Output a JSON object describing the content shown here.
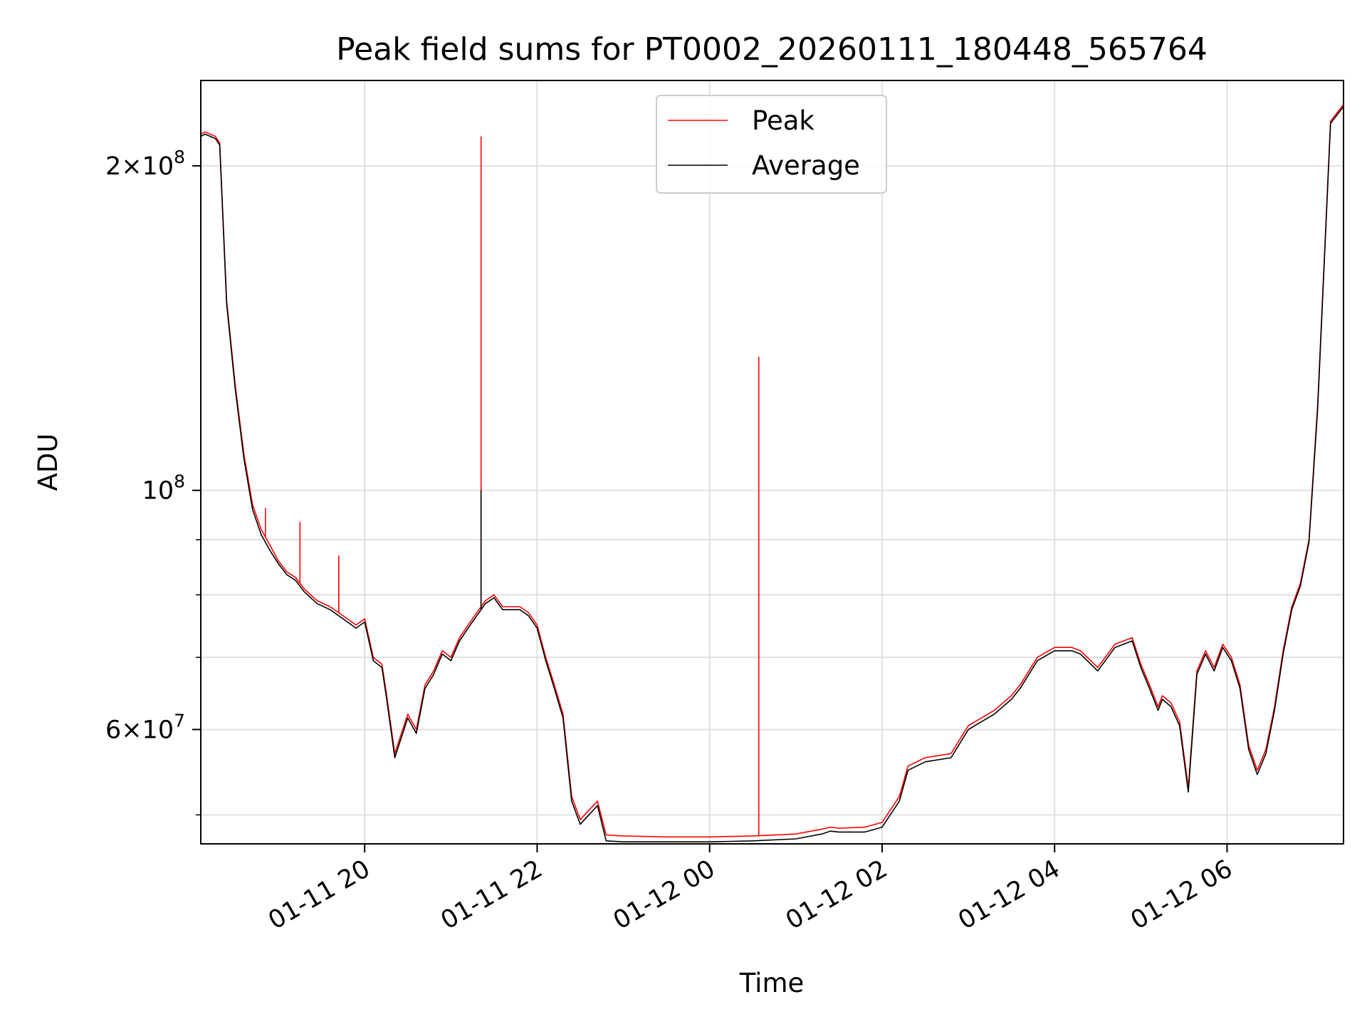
{
  "chart_data": {
    "type": "line",
    "title": "Peak field sums for PT0002_20260111_180448_565764",
    "xlabel": "Time",
    "ylabel": "ADU",
    "yscale": "log",
    "xlim": [
      18.1,
      31.35
    ],
    "ylim": [
      47000000,
      240000000
    ],
    "grid": true,
    "legend_position": "upper-center",
    "x_ticks": [
      {
        "value": 20,
        "label": "01-11 20"
      },
      {
        "value": 22,
        "label": "01-11 22"
      },
      {
        "value": 24,
        "label": "01-12 00"
      },
      {
        "value": 26,
        "label": "01-12 02"
      },
      {
        "value": 28,
        "label": "01-12 04"
      },
      {
        "value": 30,
        "label": "01-12 06"
      }
    ],
    "y_major_ticks": [
      {
        "value": 60000000,
        "base": "6",
        "exp": "7"
      },
      {
        "value": 100000000,
        "base": "",
        "exp": "8"
      },
      {
        "value": 200000000,
        "base": "2",
        "exp": "8"
      }
    ],
    "y_minor_ticks": [
      50000000,
      70000000,
      80000000,
      90000000,
      300000000
    ],
    "series": [
      {
        "name": "Peak",
        "color": "#ff0000",
        "x": [
          18.1,
          18.15,
          18.27,
          18.32,
          18.4,
          18.5,
          18.6,
          18.7,
          18.8,
          18.9,
          19.0,
          19.1,
          19.2,
          19.3,
          19.45,
          19.6,
          19.8,
          19.9,
          20.0,
          20.1,
          20.2,
          20.25,
          20.35,
          20.5,
          20.6,
          20.7,
          20.8,
          20.9,
          21.0,
          21.1,
          21.2,
          21.3,
          21.4,
          21.5,
          21.6,
          21.7,
          21.8,
          21.9,
          22.0,
          22.1,
          22.2,
          22.3,
          22.4,
          22.5,
          22.6,
          22.7,
          22.8,
          23.0,
          23.5,
          24.0,
          24.5,
          25.0,
          25.3,
          25.4,
          25.5,
          25.8,
          26.0,
          26.2,
          26.3,
          26.5,
          26.8,
          27.0,
          27.3,
          27.5,
          27.6,
          27.8,
          28.0,
          28.2,
          28.3,
          28.5,
          28.7,
          28.9,
          29.0,
          29.1,
          29.2,
          29.25,
          29.35,
          29.45,
          29.55,
          29.65,
          29.75,
          29.85,
          29.95,
          30.05,
          30.15,
          30.25,
          30.35,
          30.45,
          30.55,
          30.65,
          30.75,
          30.85,
          30.95,
          31.05,
          31.2,
          31.35
        ],
        "y": [
          214000000,
          215000000,
          213000000,
          210000000,
          150000000,
          125000000,
          108000000,
          97000000,
          92000000,
          89000000,
          86000000,
          84000000,
          83000000,
          81000000,
          79000000,
          78000000,
          76000000,
          75000000,
          76000000,
          70000000,
          69000000,
          65000000,
          57000000,
          62000000,
          60000000,
          66000000,
          68000000,
          71000000,
          70000000,
          73000000,
          75000000,
          77000000,
          79000000,
          80000000,
          78000000,
          78000000,
          78000000,
          77000000,
          75000000,
          70000000,
          66000000,
          62000000,
          52000000,
          49500000,
          50500000,
          51500000,
          47900000,
          47800000,
          47700000,
          47700000,
          47800000,
          48000000,
          48500000,
          48700000,
          48600000,
          48700000,
          49200000,
          52000000,
          55500000,
          56500000,
          57000000,
          60500000,
          62500000,
          64500000,
          66000000,
          70000000,
          71500000,
          71500000,
          71000000,
          68500000,
          72000000,
          73000000,
          69000000,
          66000000,
          63000000,
          64500000,
          63500000,
          61000000,
          53000000,
          68000000,
          71000000,
          68500000,
          72000000,
          70000000,
          66000000,
          58000000,
          55000000,
          57500000,
          63000000,
          71000000,
          78000000,
          82000000,
          90000000,
          120000000,
          220000000,
          228000000
        ],
        "spikes": [
          {
            "x": 21.35,
            "y": 213000000
          },
          {
            "x": 24.57,
            "y": 133000000
          },
          {
            "x": 19.25,
            "y": 93500000
          },
          {
            "x": 19.7,
            "y": 87000000
          },
          {
            "x": 18.7,
            "y": 96500000
          },
          {
            "x": 18.85,
            "y": 96300000
          }
        ]
      },
      {
        "name": "Average",
        "color": "#000000",
        "x": [
          18.1,
          18.15,
          18.27,
          18.32,
          18.4,
          18.5,
          18.6,
          18.7,
          18.8,
          18.9,
          19.0,
          19.1,
          19.2,
          19.3,
          19.45,
          19.6,
          19.8,
          19.9,
          20.0,
          20.1,
          20.2,
          20.25,
          20.35,
          20.5,
          20.6,
          20.7,
          20.8,
          20.9,
          21.0,
          21.1,
          21.2,
          21.3,
          21.4,
          21.5,
          21.6,
          21.7,
          21.8,
          21.9,
          22.0,
          22.1,
          22.2,
          22.3,
          22.4,
          22.5,
          22.6,
          22.7,
          22.8,
          23.0,
          23.5,
          24.0,
          24.5,
          25.0,
          25.3,
          25.4,
          25.5,
          25.8,
          26.0,
          26.2,
          26.3,
          26.5,
          26.8,
          27.0,
          27.3,
          27.5,
          27.6,
          27.8,
          28.0,
          28.2,
          28.3,
          28.5,
          28.7,
          28.9,
          29.0,
          29.1,
          29.2,
          29.25,
          29.35,
          29.45,
          29.55,
          29.65,
          29.75,
          29.85,
          29.95,
          30.05,
          30.15,
          30.25,
          30.35,
          30.45,
          30.55,
          30.65,
          30.75,
          30.85,
          30.95,
          31.05,
          31.2,
          31.35
        ],
        "y": [
          213000000,
          214000000,
          212000000,
          209000000,
          149000000,
          124000000,
          107000000,
          96000000,
          91000000,
          88000000,
          85500000,
          83500000,
          82500000,
          80500000,
          78500000,
          77500000,
          75500000,
          74500000,
          75500000,
          69500000,
          68500000,
          64500000,
          56500000,
          61500000,
          59500000,
          65500000,
          67500000,
          70500000,
          69500000,
          72500000,
          74500000,
          76500000,
          78500000,
          79500000,
          77500000,
          77500000,
          77500000,
          76500000,
          74500000,
          69500000,
          65500000,
          61500000,
          51500000,
          49000000,
          50000000,
          51000000,
          47300000,
          47200000,
          47200000,
          47200000,
          47300000,
          47500000,
          48000000,
          48300000,
          48200000,
          48200000,
          48700000,
          51500000,
          55000000,
          56000000,
          56500000,
          60000000,
          62000000,
          64000000,
          65500000,
          69500000,
          71000000,
          71000000,
          70500000,
          68000000,
          71500000,
          72500000,
          68500000,
          65500000,
          62500000,
          64000000,
          63000000,
          60500000,
          52500000,
          67500000,
          70500000,
          68000000,
          71500000,
          69500000,
          65500000,
          57500000,
          54500000,
          57000000,
          62500000,
          70500000,
          77500000,
          81500000,
          89500000,
          119000000,
          219000000,
          227000000
        ],
        "spikes": [
          {
            "x": 21.35,
            "y": 100000000
          }
        ]
      }
    ]
  }
}
